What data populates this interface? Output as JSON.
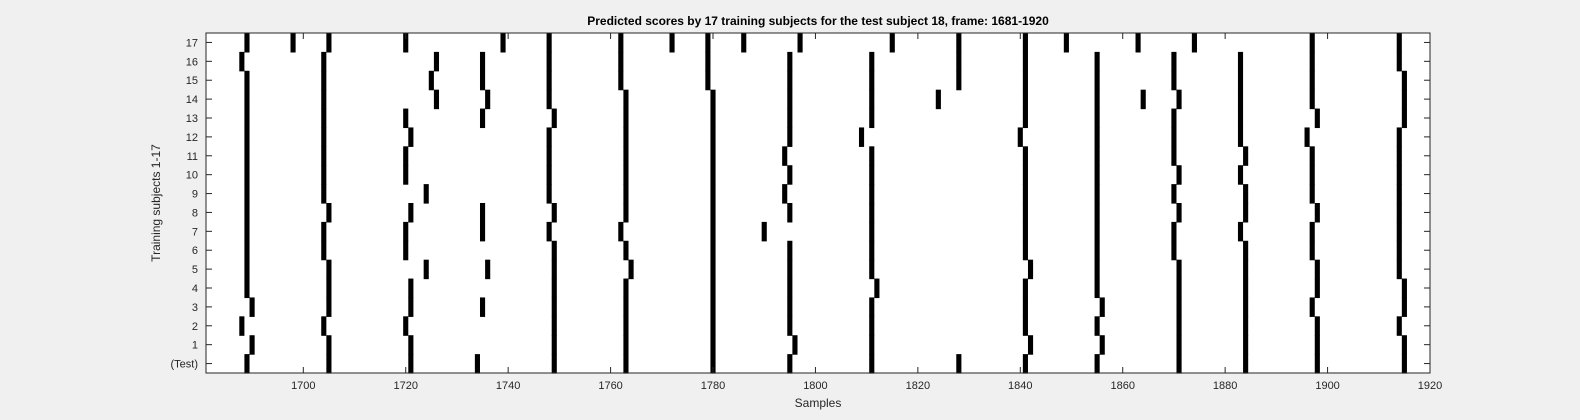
{
  "chart_data": {
    "type": "heatmap",
    "title": "Predicted scores by 17 training subjects for the test subject 18, frame: 1681-1920",
    "xlabel": "Samples",
    "ylabel": "Training subjects 1-17",
    "xlim": [
      1681,
      1920
    ],
    "xticks": [
      1700,
      1720,
      1740,
      1760,
      1780,
      1800,
      1820,
      1840,
      1860,
      1880,
      1900,
      1920
    ],
    "yticks": [
      "(Test)",
      "1",
      "2",
      "3",
      "4",
      "5",
      "6",
      "7",
      "8",
      "9",
      "10",
      "11",
      "12",
      "13",
      "14",
      "15",
      "16",
      "17"
    ],
    "grid": false,
    "colors": {
      "mark": "#000000",
      "background": "#ffffff",
      "axis": "#262626"
    },
    "rows": [
      {
        "label": "(Test)",
        "marks": [
          1689,
          1705,
          1721,
          1734,
          1749,
          1763,
          1780,
          1795,
          1811,
          1828,
          1841,
          1855,
          1871,
          1884,
          1898,
          1915
        ]
      },
      {
        "label": "1",
        "marks": [
          1690,
          1705,
          1721,
          1749,
          1763,
          1780,
          1796,
          1811,
          1842,
          1856,
          1871,
          1884,
          1898,
          1915
        ]
      },
      {
        "label": "2",
        "marks": [
          1688,
          1704,
          1720,
          1749,
          1763,
          1780,
          1795,
          1811,
          1841,
          1855,
          1871,
          1884,
          1898,
          1914
        ]
      },
      {
        "label": "3",
        "marks": [
          1690,
          1705,
          1721,
          1735,
          1749,
          1763,
          1780,
          1795,
          1811,
          1841,
          1856,
          1871,
          1884,
          1897,
          1915
        ]
      },
      {
        "label": "4",
        "marks": [
          1689,
          1705,
          1721,
          1749,
          1763,
          1780,
          1795,
          1812,
          1841,
          1855,
          1871,
          1884,
          1898,
          1915
        ]
      },
      {
        "label": "5",
        "marks": [
          1689,
          1705,
          1724,
          1736,
          1749,
          1764,
          1780,
          1795,
          1811,
          1842,
          1855,
          1871,
          1884,
          1898,
          1914
        ]
      },
      {
        "label": "6",
        "marks": [
          1689,
          1704,
          1720,
          1749,
          1763,
          1780,
          1795,
          1811,
          1841,
          1855,
          1870,
          1884,
          1897,
          1914
        ]
      },
      {
        "label": "7",
        "marks": [
          1689,
          1704,
          1720,
          1735,
          1748,
          1762,
          1780,
          1790,
          1811,
          1841,
          1855,
          1870,
          1883,
          1897,
          1914
        ]
      },
      {
        "label": "8",
        "marks": [
          1689,
          1705,
          1721,
          1735,
          1749,
          1763,
          1780,
          1795,
          1811,
          1841,
          1855,
          1871,
          1884,
          1898,
          1914
        ]
      },
      {
        "label": "9",
        "marks": [
          1689,
          1704,
          1724,
          1748,
          1763,
          1780,
          1794,
          1811,
          1841,
          1855,
          1870,
          1884,
          1897,
          1914
        ]
      },
      {
        "label": "10",
        "marks": [
          1689,
          1704,
          1720,
          1748,
          1763,
          1780,
          1795,
          1811,
          1841,
          1855,
          1871,
          1883,
          1897,
          1914
        ]
      },
      {
        "label": "11",
        "marks": [
          1689,
          1704,
          1720,
          1748,
          1763,
          1780,
          1794,
          1811,
          1841,
          1855,
          1870,
          1884,
          1897,
          1914
        ]
      },
      {
        "label": "12",
        "marks": [
          1689,
          1704,
          1721,
          1748,
          1763,
          1780,
          1795,
          1809,
          1840,
          1855,
          1870,
          1883,
          1896,
          1914
        ]
      },
      {
        "label": "13",
        "marks": [
          1689,
          1704,
          1720,
          1735,
          1749,
          1763,
          1780,
          1795,
          1811,
          1841,
          1855,
          1870,
          1883,
          1898,
          1915
        ]
      },
      {
        "label": "14",
        "marks": [
          1689,
          1704,
          1726,
          1736,
          1748,
          1763,
          1780,
          1795,
          1811,
          1824,
          1841,
          1855,
          1864,
          1871,
          1883,
          1897,
          1915
        ]
      },
      {
        "label": "15",
        "marks": [
          1689,
          1704,
          1725,
          1735,
          1748,
          1762,
          1779,
          1795,
          1811,
          1828,
          1841,
          1855,
          1870,
          1883,
          1897,
          1915
        ]
      },
      {
        "label": "16",
        "marks": [
          1688,
          1704,
          1726,
          1735,
          1748,
          1762,
          1779,
          1795,
          1811,
          1828,
          1841,
          1855,
          1870,
          1883,
          1897,
          1914
        ]
      },
      {
        "label": "17",
        "marks": [
          1689,
          1698,
          1705,
          1720,
          1739,
          1748,
          1762,
          1772,
          1779,
          1786,
          1797,
          1815,
          1828,
          1841,
          1849,
          1863,
          1874,
          1897,
          1914
        ]
      }
    ]
  }
}
